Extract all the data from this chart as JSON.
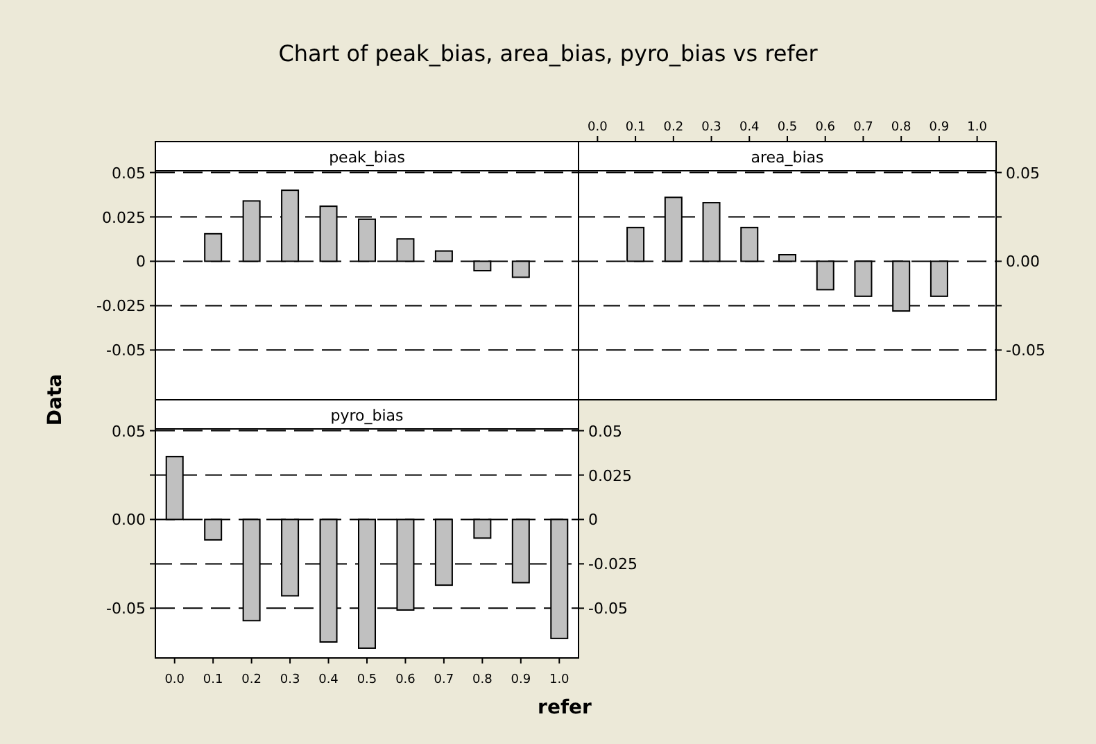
{
  "chart_data": [
    {
      "type": "bar",
      "title": "Chart of peak_bias, area_bias, pyro_bias vs refer",
      "categories": [
        null,
        null,
        null,
        null,
        null,
        null,
        null,
        null,
        null,
        null,
        null
      ],
      "series": [
        {
          "name": "peak_bias",
          "color": "#c0c0c0",
          "values": [
            0,
            0.0155,
            0.034,
            0.04,
            0.031,
            0.0237,
            0.0126,
            0.0058,
            -0.0053,
            -0.009,
            0
          ]
        }
      ],
      "ylim": [
        -0.078,
        0.051
      ],
      "yticks": [
        0.05,
        0.025,
        0,
        -0.025,
        -0.05
      ],
      "grid": "y",
      "tick_labels": "y"
    },
    {
      "type": "bar",
      "categories": [
        "0.0",
        "0.1",
        "0.2",
        "0.3",
        "0.4",
        "0.5",
        "0.6",
        "0.7",
        "0.8",
        "0.9",
        "1.0"
      ],
      "series": [
        {
          "name": "area_bias",
          "color": "#c0c0c0",
          "values": [
            0,
            0.019,
            0.036,
            0.033,
            0.019,
            0.0037,
            -0.016,
            -0.0197,
            -0.028,
            -0.0197,
            0
          ]
        }
      ],
      "ylim": [
        -0.078,
        0.051
      ],
      "yticks": [
        0.05,
        {
          "value": 0.025,
          "label": null
        },
        {
          "value": 0,
          "label": "0.00"
        },
        {
          "value": -0.025,
          "label": null
        },
        -0.05
      ],
      "grid": "y"
    },
    {
      "type": "bar",
      "xlabel": "refer",
      "ylabel": "Data",
      "categories": [
        "0.0",
        "0.1",
        "0.2",
        "0.3",
        "0.4",
        "0.5",
        "0.6",
        "0.7",
        "0.8",
        "0.9",
        "1.0"
      ],
      "series": [
        {
          "name": "pyro_bias",
          "color": "#c0c0c0",
          "values": [
            0.0354,
            -0.0115,
            -0.057,
            -0.043,
            -0.069,
            -0.0725,
            -0.051,
            -0.037,
            -0.0105,
            -0.0356,
            -0.067
          ]
        }
      ],
      "ylim": [
        -0.078,
        0.051
      ],
      "yticks": [
        0.05,
        {
          "value": 0.025,
          "label": null
        },
        {
          "value": 0,
          "label": "0.00"
        },
        {
          "value": -0.025,
          "label": null
        },
        -0.05
      ],
      "y2lim": [
        -0.078,
        0.051
      ],
      "y2ticks": [
        0.05,
        0.025,
        0,
        -0.025,
        -0.05
      ],
      "grid": "y"
    }
  ]
}
